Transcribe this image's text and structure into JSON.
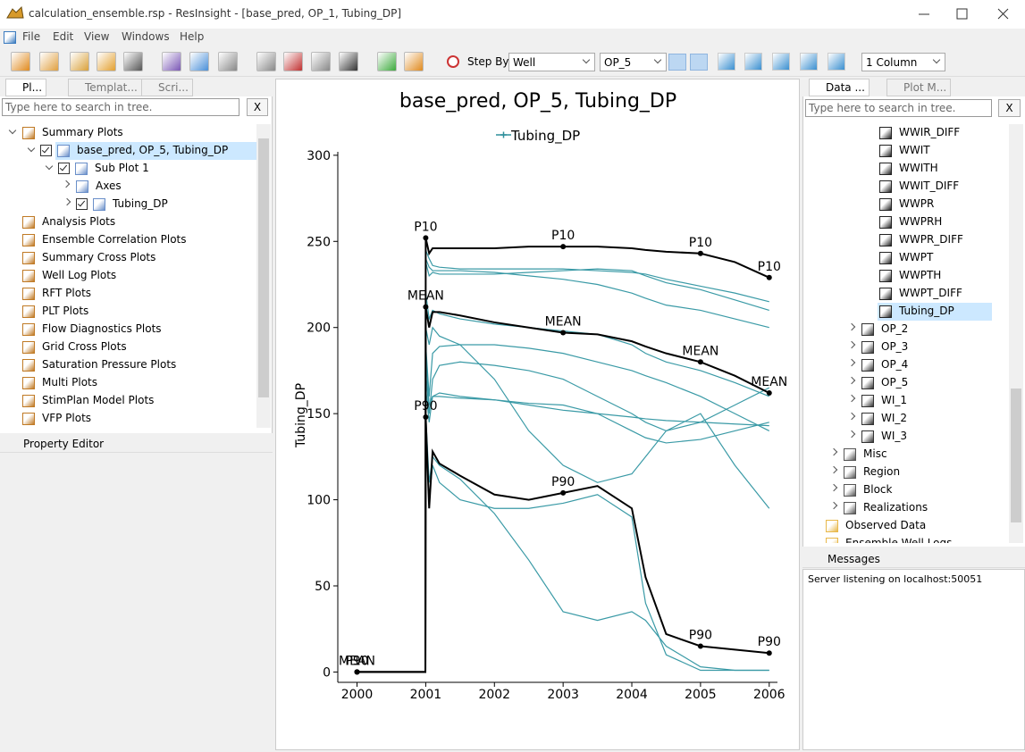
{
  "window": {
    "title": "calculation_ensemble.rsp - ResInsight - [base_pred, OP_1, Tubing_DP]"
  },
  "menu": [
    "File",
    "Edit",
    "View",
    "Windows",
    "Help"
  ],
  "toolbar": {
    "step_by": "Step By",
    "step_by_value": "Well",
    "well": "OP_5",
    "layout": "1 Column"
  },
  "left_panel": {
    "tabs": [
      "Pl...",
      "Templat...",
      "Scri..."
    ],
    "search": "Type here to search in tree.",
    "search_button": "X",
    "tree": [
      {
        "label": "Summary Plots",
        "expanded": true,
        "children": [
          {
            "label": "base_pred, OP_5, Tubing_DP",
            "checked": true,
            "expanded": true,
            "selected": true,
            "children": [
              {
                "label": "Sub Plot 1",
                "checked": true,
                "expanded": true,
                "children": [
                  {
                    "label": "Axes",
                    "expanded": false
                  },
                  {
                    "label": "Tubing_DP",
                    "checked": true,
                    "expanded": false
                  }
                ]
              }
            ]
          }
        ]
      },
      {
        "label": "Analysis Plots"
      },
      {
        "label": "Ensemble Correlation Plots"
      },
      {
        "label": "Summary Cross Plots"
      },
      {
        "label": "Well Log Plots"
      },
      {
        "label": "RFT Plots"
      },
      {
        "label": "PLT Plots"
      },
      {
        "label": "Flow Diagnostics Plots"
      },
      {
        "label": "Grid Cross Plots"
      },
      {
        "label": "Saturation Pressure Plots"
      },
      {
        "label": "Multi Plots"
      },
      {
        "label": "StimPlan Model Plots"
      },
      {
        "label": "VFP Plots"
      }
    ]
  },
  "property_editor": {
    "title": "Property Editor"
  },
  "right_panel": {
    "tabs": [
      "Data ...",
      "Plot M..."
    ],
    "search": "Type here to search in tree.",
    "search_button": "X",
    "vectors": [
      {
        "label": "WWIR_DIFF"
      },
      {
        "label": "WWIT"
      },
      {
        "label": "WWITH"
      },
      {
        "label": "WWIT_DIFF"
      },
      {
        "label": "WWPR"
      },
      {
        "label": "WWPRH"
      },
      {
        "label": "WWPR_DIFF"
      },
      {
        "label": "WWPT"
      },
      {
        "label": "WWPTH"
      },
      {
        "label": "WWPT_DIFF"
      },
      {
        "label": "Tubing_DP",
        "selected": true
      }
    ],
    "wells": [
      "OP_2",
      "OP_3",
      "OP_4",
      "OP_5",
      "WI_1",
      "WI_2",
      "WI_3"
    ],
    "groups": [
      "Misc",
      "Region",
      "Block",
      "Realizations"
    ],
    "roots": [
      "Observed Data",
      "Ensemble Well Logs"
    ]
  },
  "messages": {
    "title": "Messages",
    "lines": [
      "Server listening on localhost:50051"
    ]
  },
  "chart_data": {
    "type": "line",
    "title": "base_pred, OP_5, Tubing_DP",
    "y_label": "Tubing_DP",
    "legend": "Tubing_DP",
    "legend_color": "#2f8f9b",
    "grid": false,
    "x": [
      2000,
      2000.995,
      2001,
      2001.05,
      2001.1,
      2001.2,
      2001.5,
      2002,
      2002.5,
      2003,
      2003.5,
      2004,
      2004.2,
      2004.5,
      2005,
      2005.5,
      2006
    ],
    "xlim": [
      1999.72,
      2006.12
    ],
    "xticks": [
      2000,
      2001,
      2002,
      2003,
      2004,
      2005,
      2006
    ],
    "ylim": [
      -6,
      302
    ],
    "yticks": [
      0,
      50,
      100,
      150,
      200,
      250,
      300
    ],
    "series": [
      {
        "color": "#3a9aa6",
        "values": [
          0,
          0,
          245,
          240,
          236,
          235,
          234,
          234,
          234,
          234,
          233,
          232,
          231,
          228,
          224,
          220,
          215
        ]
      },
      {
        "color": "#3a9aa6",
        "values": [
          0,
          0,
          240,
          235,
          233,
          233,
          233,
          232,
          230,
          228,
          225,
          220,
          217,
          213,
          210,
          205,
          200
        ]
      },
      {
        "color": "#3a9aa6",
        "values": [
          0,
          0,
          238,
          230,
          232,
          231,
          231,
          231,
          232,
          233,
          234,
          233,
          230,
          226,
          222,
          216,
          210
        ]
      },
      {
        "color": "#3a9aa6",
        "values": [
          0,
          0,
          220,
          205,
          210,
          208,
          205,
          202,
          200,
          198,
          196,
          190,
          185,
          180,
          175,
          168,
          160
        ]
      },
      {
        "color": "#3a9aa6",
        "values": [
          0,
          0,
          200,
          190,
          200,
          195,
          190,
          170,
          140,
          120,
          110,
          115,
          125,
          140,
          150,
          120,
          95
        ]
      },
      {
        "color": "#3a9aa6",
        "values": [
          0,
          0,
          190,
          160,
          185,
          189,
          190,
          190,
          188,
          185,
          180,
          175,
          172,
          168,
          160,
          150,
          140
        ]
      },
      {
        "color": "#3a9aa6",
        "values": [
          0,
          0,
          185,
          155,
          160,
          160,
          159,
          158,
          156,
          155,
          150,
          140,
          136,
          133,
          135,
          140,
          145
        ]
      },
      {
        "color": "#3a9aa6",
        "values": [
          0,
          0,
          175,
          150,
          170,
          178,
          180,
          178,
          175,
          170,
          160,
          150,
          145,
          140,
          145,
          155,
          165
        ]
      },
      {
        "color": "#3a9aa6",
        "values": [
          0,
          0,
          165,
          145,
          160,
          162,
          160,
          158,
          155,
          152,
          150,
          148,
          147,
          146,
          145,
          144,
          143
        ]
      },
      {
        "color": "#3a9aa6",
        "values": [
          0,
          0,
          150,
          110,
          125,
          120,
          112,
          92,
          65,
          35,
          30,
          35,
          30,
          15,
          3,
          1,
          1
        ]
      },
      {
        "color": "#3a9aa6",
        "values": [
          0,
          0,
          140,
          100,
          120,
          110,
          100,
          95,
          95,
          98,
          103,
          90,
          40,
          10,
          1,
          1,
          1
        ]
      },
      {
        "name": "P10",
        "color": "#000000",
        "values": [
          0,
          0,
          252,
          243,
          246,
          246,
          246,
          246,
          247,
          247,
          247,
          246,
          245,
          244,
          243,
          238,
          229
        ]
      },
      {
        "name": "MEAN",
        "color": "#000000",
        "values": [
          0,
          0,
          212,
          200,
          209,
          209,
          207,
          203,
          200,
          197,
          196,
          192,
          189,
          185,
          180,
          172,
          162
        ]
      },
      {
        "name": "P90",
        "color": "#000000",
        "values": [
          0,
          0,
          148,
          95,
          128,
          121,
          114,
          103,
          100,
          104,
          108,
          95,
          55,
          22,
          15,
          13,
          11
        ]
      }
    ]
  }
}
